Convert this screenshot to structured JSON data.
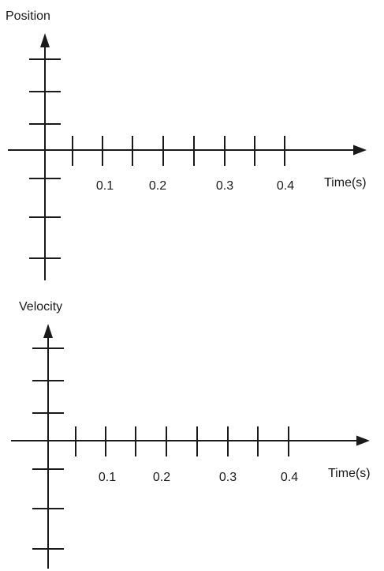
{
  "panels": [
    {
      "id": "position",
      "y_label": "Position",
      "x_label": "Time(s)",
      "x_tick_labels": [
        "0.1",
        "0.2",
        "0.3",
        "0.4"
      ],
      "x_tick_count": 8,
      "y_ticks_above": 3,
      "y_ticks_below": 3
    },
    {
      "id": "velocity",
      "y_label": "Velocity",
      "x_label": "Time(s)",
      "x_tick_labels": [
        "0.1",
        "0.2",
        "0.3",
        "0.4"
      ],
      "x_tick_count": 8,
      "y_ticks_above": 3,
      "y_ticks_below": 3
    }
  ]
}
